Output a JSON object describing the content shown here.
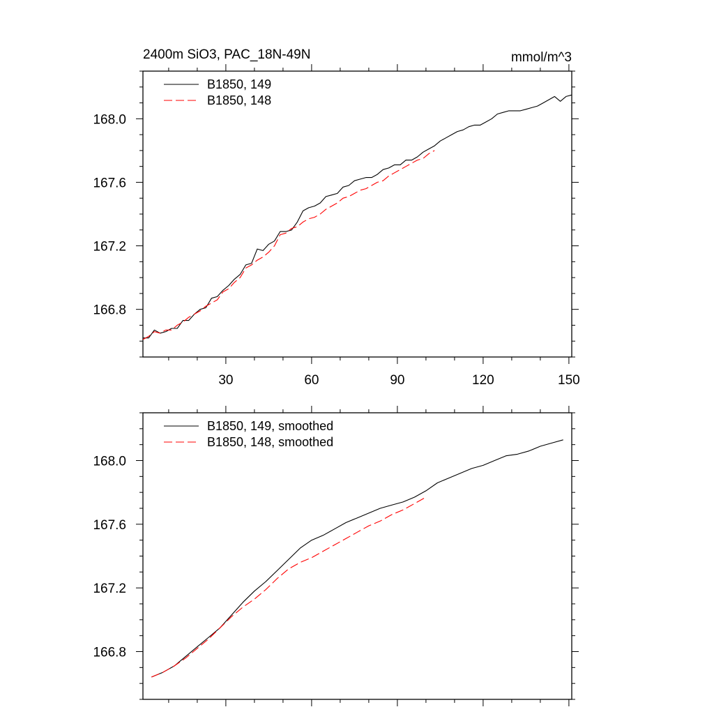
{
  "chart_data": [
    {
      "type": "line",
      "title": "2400m SiO3, PAC_18N-49N",
      "units_label": "mmol/m^3",
      "xlabel": "",
      "ylabel": "",
      "xlim": [
        1,
        151
      ],
      "ylim": [
        166.5,
        168.3
      ],
      "x_tick_labels": [
        "30",
        "60",
        "90",
        "120",
        "150"
      ],
      "y_tick_labels": [
        "166.8",
        "167.2",
        "167.6",
        "168.0"
      ],
      "legend_position": "top-left",
      "series": [
        {
          "name": "B1850, 149",
          "color": "#000000",
          "dash": "solid",
          "x": [
            1,
            3,
            5,
            7,
            9,
            11,
            13,
            15,
            17,
            19,
            21,
            23,
            25,
            27,
            29,
            31,
            33,
            35,
            37,
            39,
            41,
            43,
            45,
            47,
            49,
            51,
            53,
            55,
            57,
            59,
            61,
            63,
            65,
            67,
            69,
            71,
            73,
            75,
            77,
            79,
            81,
            83,
            85,
            87,
            89,
            91,
            93,
            95,
            97,
            99,
            101,
            103,
            105,
            107,
            109,
            111,
            113,
            115,
            117,
            119,
            121,
            123,
            125,
            127,
            129,
            131,
            133,
            135,
            137,
            139,
            141,
            143,
            145,
            147,
            149,
            151
          ],
          "values": [
            166.62,
            166.62,
            166.67,
            166.65,
            166.66,
            166.68,
            166.68,
            166.73,
            166.73,
            166.77,
            166.8,
            166.81,
            166.87,
            166.88,
            166.92,
            166.95,
            166.99,
            167.02,
            167.08,
            167.09,
            167.18,
            167.17,
            167.21,
            167.23,
            167.29,
            167.29,
            167.3,
            167.35,
            167.42,
            167.44,
            167.45,
            167.47,
            167.51,
            167.52,
            167.53,
            167.57,
            167.58,
            167.61,
            167.62,
            167.63,
            167.63,
            167.65,
            167.68,
            167.69,
            167.71,
            167.71,
            167.74,
            167.74,
            167.76,
            167.79,
            167.81,
            167.83,
            167.86,
            167.88,
            167.9,
            167.92,
            167.93,
            167.95,
            167.96,
            167.96,
            167.98,
            168.0,
            168.03,
            168.04,
            168.05,
            168.05,
            168.05,
            168.06,
            168.07,
            168.08,
            168.1,
            168.12,
            168.14,
            168.11,
            168.14,
            168.15
          ]
        },
        {
          "name": "B1850, 148",
          "color": "#ff0000",
          "dash": "dashed",
          "x": [
            1,
            3,
            5,
            7,
            9,
            11,
            13,
            15,
            17,
            19,
            21,
            23,
            25,
            27,
            29,
            31,
            33,
            35,
            37,
            39,
            41,
            43,
            45,
            47,
            49,
            51,
            53,
            55,
            57,
            59,
            61,
            63,
            65,
            67,
            69,
            71,
            73,
            75,
            77,
            79,
            81,
            83,
            85,
            87,
            89,
            91,
            93,
            95,
            97,
            99,
            101,
            103
          ],
          "values": [
            166.61,
            166.63,
            166.66,
            166.65,
            166.67,
            166.67,
            166.7,
            166.72,
            166.75,
            166.77,
            166.79,
            166.82,
            166.84,
            166.86,
            166.91,
            166.93,
            166.97,
            167.0,
            167.06,
            167.08,
            167.11,
            167.13,
            167.16,
            167.2,
            167.27,
            167.28,
            167.31,
            167.32,
            167.35,
            167.37,
            167.38,
            167.4,
            167.43,
            167.45,
            167.47,
            167.5,
            167.51,
            167.53,
            167.55,
            167.56,
            167.58,
            167.6,
            167.61,
            167.64,
            167.66,
            167.68,
            167.7,
            167.72,
            167.74,
            167.75,
            167.78,
            167.8
          ]
        }
      ]
    },
    {
      "type": "line",
      "title": "",
      "xlabel": "",
      "ylabel": "",
      "xlim": [
        1,
        151
      ],
      "ylim": [
        166.5,
        168.3
      ],
      "y_tick_labels": [
        "166.8",
        "167.2",
        "167.6",
        "168.0"
      ],
      "legend_position": "top-left",
      "series": [
        {
          "name": "B1850, 149, smoothed",
          "color": "#000000",
          "dash": "solid",
          "x": [
            4,
            8,
            12,
            16,
            20,
            24,
            28,
            32,
            36,
            40,
            44,
            48,
            52,
            56,
            60,
            64,
            68,
            72,
            76,
            80,
            84,
            88,
            92,
            96,
            100,
            104,
            108,
            112,
            116,
            120,
            124,
            128,
            132,
            136,
            140,
            144,
            148
          ],
          "values": [
            166.64,
            166.67,
            166.71,
            166.77,
            166.83,
            166.89,
            166.95,
            167.03,
            167.11,
            167.18,
            167.24,
            167.31,
            167.38,
            167.45,
            167.5,
            167.53,
            167.57,
            167.61,
            167.64,
            167.67,
            167.7,
            167.72,
            167.74,
            167.77,
            167.81,
            167.86,
            167.89,
            167.92,
            167.95,
            167.97,
            168.0,
            168.03,
            168.04,
            168.06,
            168.09,
            168.11,
            168.13
          ]
        },
        {
          "name": "B1850, 148, smoothed",
          "color": "#ff0000",
          "dash": "dashed",
          "x": [
            4,
            8,
            12,
            16,
            20,
            24,
            28,
            32,
            36,
            40,
            44,
            48,
            52,
            56,
            60,
            64,
            68,
            72,
            76,
            80,
            84,
            88,
            92,
            96,
            100
          ],
          "values": [
            166.64,
            166.67,
            166.71,
            166.76,
            166.82,
            166.88,
            166.95,
            167.02,
            167.08,
            167.13,
            167.19,
            167.26,
            167.32,
            167.36,
            167.39,
            167.43,
            167.47,
            167.51,
            167.55,
            167.59,
            167.62,
            167.66,
            167.69,
            167.73,
            167.77
          ]
        }
      ]
    }
  ]
}
